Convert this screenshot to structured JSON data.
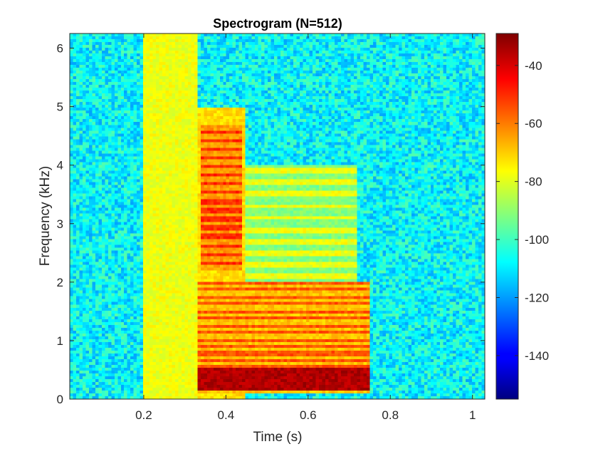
{
  "chart_data": {
    "type": "heatmap",
    "title": "Spectrogram (N=512)",
    "xlabel": "Time (s)",
    "ylabel": "Frequency (kHz)",
    "xlim": [
      0.02,
      1.03
    ],
    "ylim": [
      0,
      6.25
    ],
    "xticks": [
      0.2,
      0.4,
      0.6,
      0.8,
      1
    ],
    "xtick_labels": [
      "0.2",
      "0.4",
      "0.6",
      "0.8",
      "1"
    ],
    "yticks": [
      0,
      1,
      2,
      3,
      4,
      5,
      6
    ],
    "ytick_labels": [
      "0",
      "1",
      "2",
      "3",
      "4",
      "5",
      "6"
    ],
    "colorbar": {
      "range": [
        -155,
        -29
      ],
      "ticks": [
        -40,
        -60,
        -80,
        -100,
        -120,
        -140
      ],
      "tick_labels": [
        "-40",
        "-60",
        "-80",
        "-100",
        "-120",
        "-140"
      ],
      "colormap": "jet"
    },
    "grid": false,
    "background_level_db": -108,
    "regions": [
      {
        "t": [
          0.2,
          0.33
        ],
        "f": [
          0,
          6.25
        ],
        "level_db": -78
      },
      {
        "t": [
          0.33,
          0.45
        ],
        "f": [
          0,
          5.0
        ],
        "level_db": -72
      },
      {
        "t": [
          0.34,
          0.44
        ],
        "f": [
          2.2,
          4.7
        ],
        "level_db": -50,
        "harmonic_spacing_khz": 0.15
      },
      {
        "t": [
          0.33,
          0.75
        ],
        "f": [
          0.1,
          2.0
        ],
        "level_db": -55,
        "harmonic_spacing_khz": 0.12
      },
      {
        "t": [
          0.33,
          0.75
        ],
        "f": [
          0.15,
          0.55
        ],
        "level_db": -35
      },
      {
        "t": [
          0.45,
          0.72
        ],
        "f": [
          2.0,
          4.0
        ],
        "level_db": -78,
        "harmonic_spacing_khz": 0.2
      }
    ]
  }
}
